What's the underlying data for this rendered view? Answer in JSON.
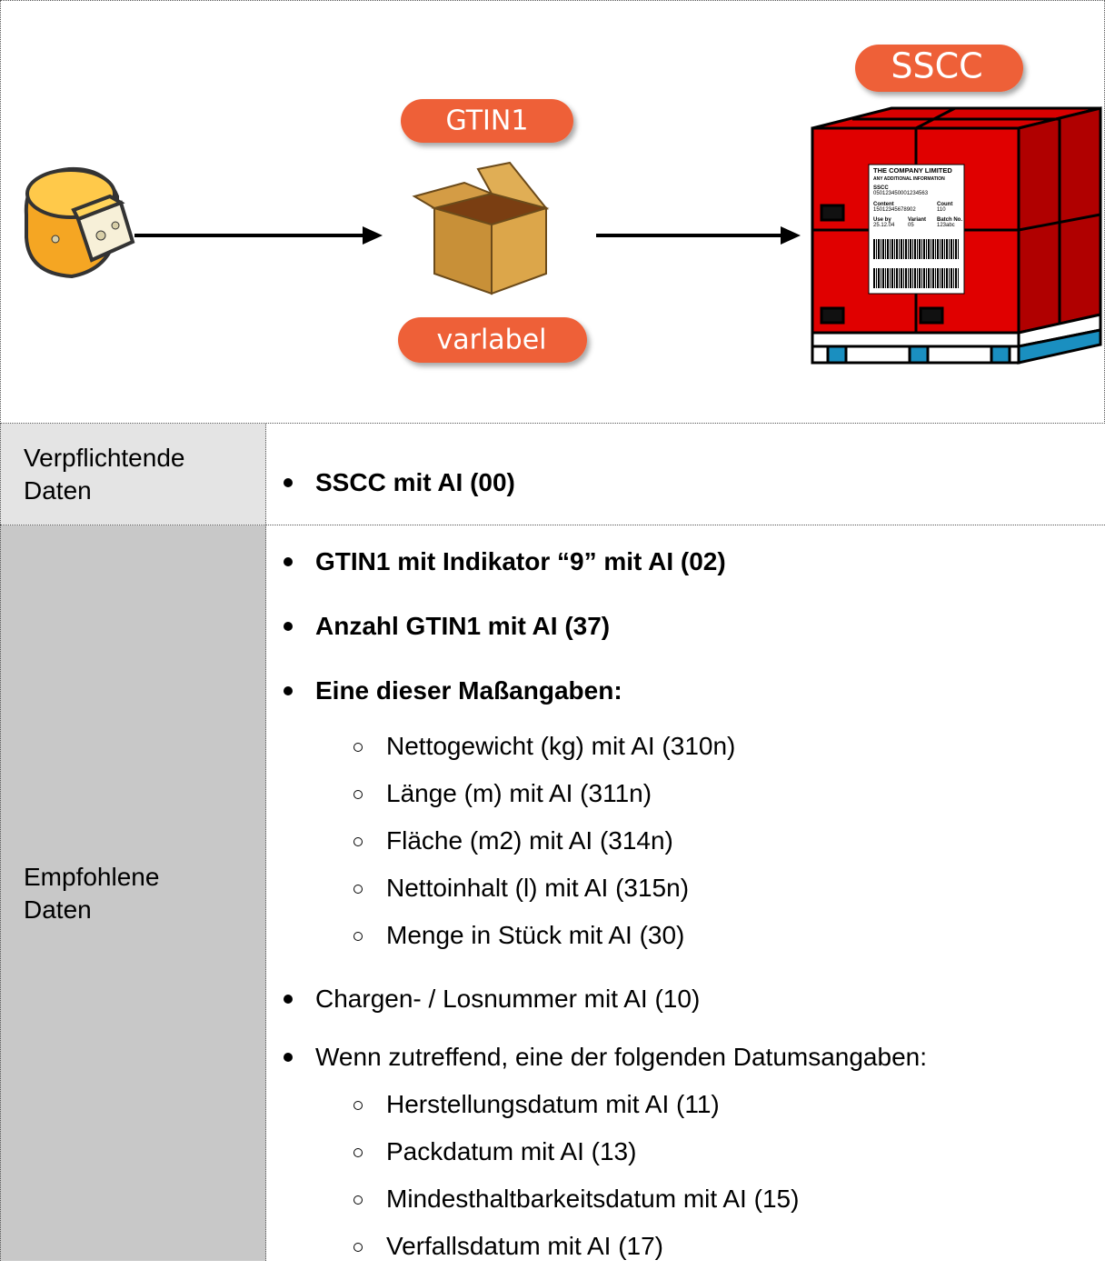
{
  "diagram": {
    "gtin_tag": "GTIN1",
    "variable_tag": "varlabel",
    "sscc_tag": "SSCC",
    "pallet_label": {
      "company": "THE COMPANY LIMITED",
      "info": "ANY ADDITIONAL INFORMATION",
      "sscc_title": "SSCC",
      "sscc_value": "050123450001234563",
      "content_title": "Content",
      "content_value": "15012345678902",
      "count_title": "Count",
      "count_value": "110",
      "useby_title": "Use by",
      "useby_value": "25.12.04",
      "variant_title": "Variant",
      "variant_value": "05",
      "batch_title": "Batch No.",
      "batch_value": "123abc"
    }
  },
  "table": {
    "rows": [
      {
        "label": "Verpflichtende Daten",
        "items": [
          {
            "text": "SSCC mit AI (00)",
            "bold": true
          }
        ]
      },
      {
        "label": "Empfohlene Daten",
        "items": [
          {
            "text": "GTIN1 mit Indikator “9” mit AI (02)",
            "bold": true
          },
          {
            "text": "Anzahl GTIN1 mit AI (37)",
            "bold": true
          },
          {
            "text": "Eine dieser Maßangaben:",
            "bold": true,
            "children": [
              {
                "text": "Nettogewicht (kg) mit AI (310n)"
              },
              {
                "text": "Länge (m) mit AI (311n)"
              },
              {
                "text": "Fläche (m2) mit AI (314n)"
              },
              {
                "text": "Nettoinhalt (l) mit AI (315n)"
              },
              {
                "text": "Menge in Stück mit AI (30)"
              }
            ]
          },
          {
            "text": "Chargen- / Losnummer mit AI (10)",
            "bold": false
          },
          {
            "text": "Wenn zutreffend, eine der folgenden Datumsangaben:",
            "bold": false,
            "children": [
              {
                "text": "Herstellungsdatum mit AI (11)"
              },
              {
                "text": "Packdatum mit AI (13)"
              },
              {
                "text": "Mindesthaltbarkeitsdatum mit AI (15)"
              },
              {
                "text": "Verfallsdatum mit AI (17)"
              }
            ]
          }
        ]
      }
    ]
  }
}
